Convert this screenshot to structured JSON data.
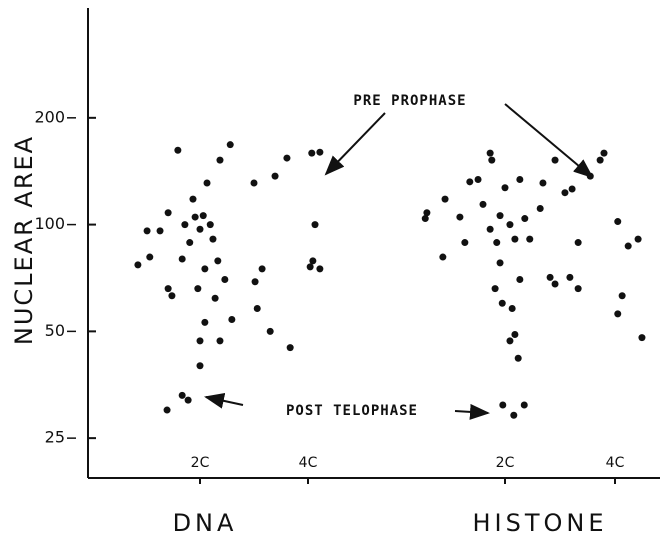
{
  "chart_data": [
    {
      "type": "scatter",
      "xlabel": "DNA",
      "ylabel": "NUCLEAR AREA",
      "color": "#111111",
      "yscale": "log",
      "ylim": [
        19.3,
        408
      ],
      "yticks": [
        25,
        50,
        100,
        200
      ],
      "xlim": [
        0,
        5.5
      ],
      "xticks": [
        {
          "value": 2,
          "label": "2C"
        },
        {
          "value": 4,
          "label": "4C"
        }
      ],
      "annotations": [
        "PRE PROPHASE",
        "POST TELOPHASE"
      ],
      "x": [
        0.85,
        1.07,
        1.02,
        1.26,
        1.41,
        1.48,
        1.59,
        1.41,
        1.72,
        1.67,
        1.81,
        1.87,
        1.91,
        2,
        2.06,
        2.13,
        2.19,
        2.24,
        2.09,
        1.96,
        2.28,
        2.37,
        2.56,
        2.33,
        2.46,
        2.59,
        2.09,
        2,
        2.37,
        2,
        1.39,
        1.67,
        1.78,
        3,
        3.39,
        3.61,
        3.02,
        3.15,
        3.06,
        3.3,
        3.67,
        4.07,
        4.22,
        4.13,
        4.09,
        4.22,
        4.04
      ],
      "values": [
        77,
        81,
        96,
        96,
        66,
        63,
        162,
        108,
        100,
        80,
        89,
        118,
        105,
        97,
        106,
        131,
        100,
        91,
        75,
        66,
        62,
        152,
        168,
        79,
        70,
        54,
        53,
        47,
        47,
        40,
        30,
        33,
        32,
        131,
        137,
        154,
        69,
        75,
        58,
        50,
        45,
        159,
        160,
        100,
        79,
        75,
        76
      ]
    },
    {
      "type": "scatter",
      "xlabel": "HISTONE",
      "color": "#111111",
      "yscale": "log",
      "ylim": [
        19.3,
        408
      ],
      "xlim": [
        0.2,
        4.8
      ],
      "xticks": [
        {
          "value": 2,
          "label": "2C"
        },
        {
          "value": 4,
          "label": "4C"
        }
      ],
      "x": [
        0.55,
        0.58,
        0.87,
        0.91,
        1.18,
        1.27,
        1.36,
        1.51,
        1.73,
        1.76,
        1.6,
        1.73,
        1.85,
        1.91,
        2,
        2.09,
        2.18,
        2.27,
        2.36,
        2.45,
        2.64,
        2.69,
        1.91,
        1.82,
        1.95,
        2.13,
        2.27,
        2.18,
        2.09,
        2.24,
        2.82,
        2.91,
        3.18,
        3.33,
        2.91,
        3.09,
        3.22,
        3.33,
        3.55,
        3.73,
        3.8,
        4.05,
        4.13,
        4.05,
        4.24,
        4.42,
        4.49,
        1.96,
        2.16,
        2.35
      ],
      "values": [
        104,
        108,
        81,
        118,
        105,
        89,
        132,
        134,
        159,
        152,
        114,
        97,
        89,
        106,
        127,
        100,
        91,
        134,
        104,
        91,
        111,
        131,
        78,
        66,
        60,
        58,
        70,
        49,
        47,
        42,
        71,
        68,
        71,
        66,
        152,
        123,
        126,
        89,
        137,
        152,
        159,
        102,
        63,
        56,
        87,
        91,
        48,
        31,
        29,
        31
      ]
    }
  ]
}
